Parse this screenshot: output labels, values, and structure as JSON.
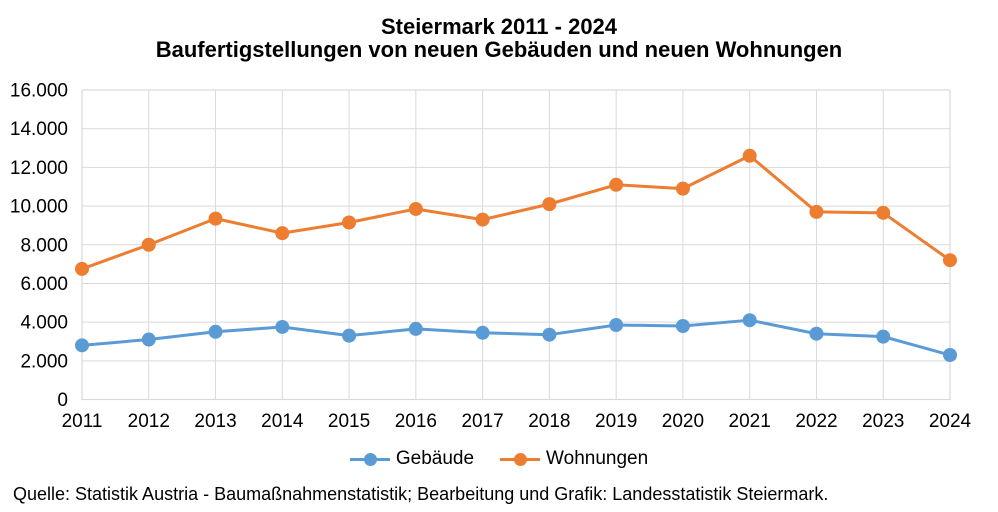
{
  "title": {
    "line1": "Steiermark 2011 - 2024",
    "line2": "Baufertigstellungen von neuen Gebäuden und neuen Wohnungen"
  },
  "chart_data": {
    "type": "line",
    "categories": [
      "2011",
      "2012",
      "2013",
      "2014",
      "2015",
      "2016",
      "2017",
      "2018",
      "2019",
      "2020",
      "2021",
      "2022",
      "2023",
      "2024"
    ],
    "series": [
      {
        "name": "Gebäude",
        "color": "#5B9BD5",
        "values": [
          2800,
          3100,
          3500,
          3750,
          3300,
          3650,
          3450,
          3350,
          3850,
          3800,
          4100,
          3400,
          3250,
          2300
        ]
      },
      {
        "name": "Wohnungen",
        "color": "#ED7D31",
        "values": [
          6750,
          8000,
          9350,
          8600,
          9150,
          9850,
          9300,
          10100,
          11100,
          10900,
          12600,
          9700,
          9650,
          7200
        ]
      }
    ],
    "xlabel": "",
    "ylabel": "",
    "ylim": [
      0,
      16000
    ],
    "ytick_step": 2000,
    "ytick_labels": [
      "0",
      "2.000",
      "4.000",
      "6.000",
      "8.000",
      "10.000",
      "12.000",
      "14.000",
      "16.000"
    ],
    "grid": true,
    "gridline_color": "#D9D9D9",
    "legend_position": "bottom",
    "number_format": "de-thousands-dot"
  },
  "source": "Quelle: Statistik Austria - Baumaßnahmenstatistik; Bearbeitung und Grafik: Landesstatistik Steiermark."
}
